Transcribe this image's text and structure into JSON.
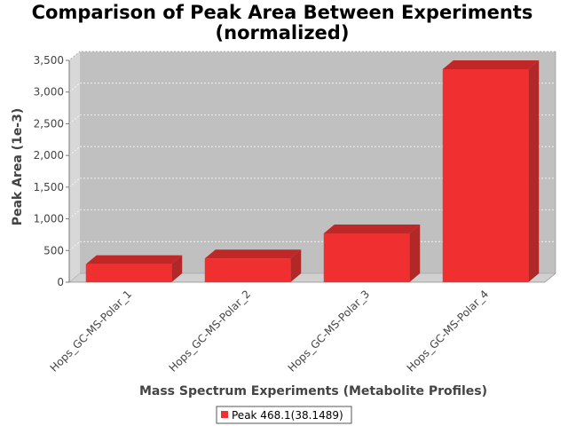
{
  "chart_data": {
    "type": "bar",
    "title": [
      "Comparison of Peak Area Between Experiments",
      "(normalized)"
    ],
    "xlabel": "Mass Spectrum Experiments (Metabolite Profiles)",
    "ylabel": "Peak Area (1e-3)",
    "categories": [
      "Hops_GC-MS-Polar_1",
      "Hops_GC-MS-Polar_2",
      "Hops_GC-MS-Polar_3",
      "Hops_GC-MS-Polar_4"
    ],
    "series": [
      {
        "name": "Peak 468.1(38.1489)",
        "values": [
          285,
          375,
          770,
          3360
        ]
      }
    ],
    "ylim": [
      0,
      3500
    ],
    "yticks": [
      0,
      500,
      1000,
      1500,
      2000,
      2500,
      3000,
      3500
    ],
    "ytick_labels": [
      "0",
      "500",
      "1,000",
      "1,500",
      "2,000",
      "2,500",
      "3,000",
      "3,500"
    ],
    "grid": true,
    "legend_position": "bottom-center",
    "colors": {
      "bar_front": "#f03030",
      "bar_top": "#c02828",
      "bar_side": "#b02828",
      "plot_bg": "#c0c0c0",
      "wall": "#d8d8d8",
      "floor": "#d0d0d0"
    }
  }
}
